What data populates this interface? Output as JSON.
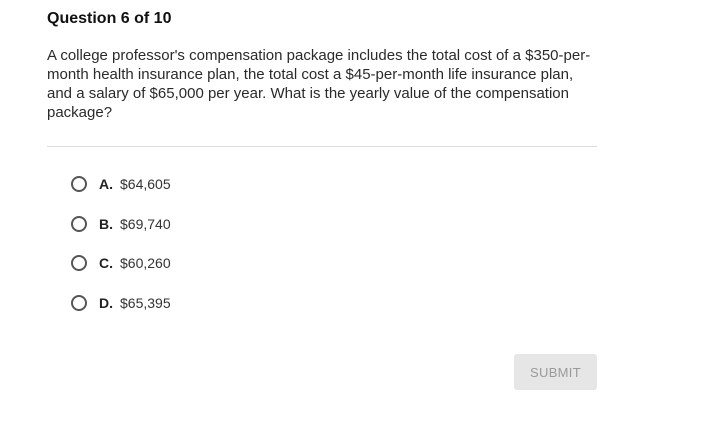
{
  "question": {
    "title": "Question 6 of 10",
    "text": "A college professor's compensation package includes the total cost of a $350-per-month health insurance plan, the total cost a $45-per-month life insurance plan, and a salary of $65,000 per year. What is the yearly value of the compensation package?"
  },
  "options": [
    {
      "letter": "A.",
      "text": "$64,605"
    },
    {
      "letter": "B.",
      "text": "$69,740"
    },
    {
      "letter": "C.",
      "text": "$60,260"
    },
    {
      "letter": "D.",
      "text": "$65,395"
    }
  ],
  "submit": {
    "label": "SUBMIT"
  },
  "icons": {
    "radio": "radio-unchecked-icon"
  }
}
